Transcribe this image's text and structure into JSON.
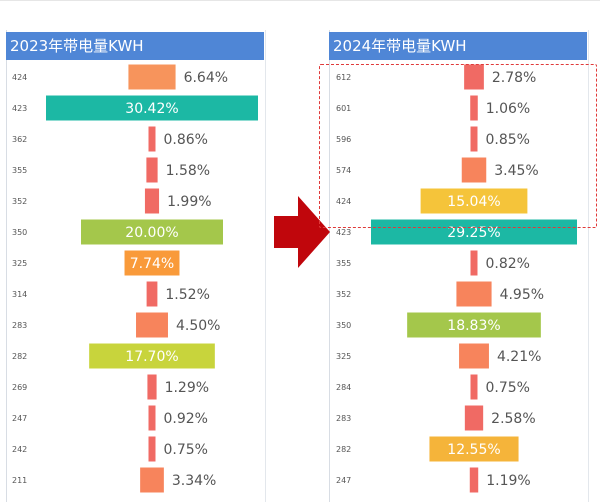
{
  "chart_data": [
    {
      "type": "bar",
      "title": "2023年带电量KWH",
      "categories": [
        "424",
        "423",
        "362",
        "355",
        "352",
        "350",
        "325",
        "314",
        "283",
        "282",
        "269",
        "247",
        "242",
        "211"
      ],
      "values": [
        6.64,
        30.42,
        0.86,
        1.58,
        1.99,
        20.0,
        7.74,
        1.52,
        4.5,
        17.7,
        1.29,
        0.92,
        0.75,
        3.34
      ],
      "labels": [
        "6.64%",
        "30.42%",
        "0.86%",
        "1.58%",
        "1.99%",
        "20.00%",
        "7.74%",
        "1.52%",
        "4.50%",
        "17.70%",
        "1.29%",
        "0.92%",
        "0.75%",
        "3.34%"
      ],
      "colors": [
        "#f7945c",
        "#1cb8a4",
        "#f06a64",
        "#f06a64",
        "#f06a64",
        "#a4c74b",
        "#f99a3a",
        "#f06a64",
        "#f7845c",
        "#c8d43c",
        "#f06a64",
        "#f06a64",
        "#f06a64",
        "#f7845c"
      ],
      "label_inside": [
        false,
        true,
        false,
        false,
        false,
        true,
        true,
        false,
        false,
        true,
        false,
        false,
        false,
        false
      ]
    },
    {
      "type": "bar",
      "title": "2024年带电量KWH",
      "categories": [
        "612",
        "601",
        "596",
        "574",
        "424",
        "423",
        "355",
        "352",
        "350",
        "325",
        "284",
        "283",
        "282",
        "247"
      ],
      "values": [
        2.78,
        1.06,
        0.85,
        3.45,
        15.04,
        29.25,
        0.82,
        4.95,
        18.83,
        4.21,
        0.75,
        2.58,
        12.55,
        1.19
      ],
      "labels": [
        "2.78%",
        "1.06%",
        "0.85%",
        "3.45%",
        "15.04%",
        "29.25%",
        "0.82%",
        "4.95%",
        "18.83%",
        "4.21%",
        "0.75%",
        "2.58%",
        "12.55%",
        "1.19%"
      ],
      "colors": [
        "#f06a64",
        "#f06a64",
        "#f06a64",
        "#f7845c",
        "#f5c43a",
        "#1cb8a4",
        "#f06a64",
        "#f7845c",
        "#a4c74b",
        "#f7845c",
        "#f06a64",
        "#f06a64",
        "#f5b43a",
        "#f06a64"
      ],
      "label_inside": [
        false,
        false,
        false,
        false,
        true,
        true,
        false,
        false,
        true,
        false,
        false,
        false,
        true,
        false
      ]
    }
  ],
  "colors": {
    "header": "#4f86d6",
    "arrow": "#c0060c",
    "highlight_box": "#e03a3a"
  },
  "icons": {
    "arrow": "right-arrow-icon"
  }
}
